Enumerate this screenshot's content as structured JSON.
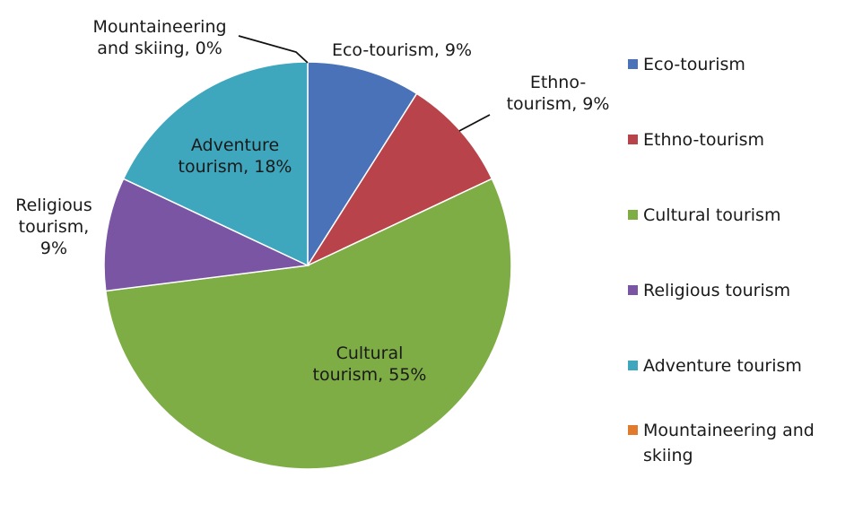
{
  "chart_data": {
    "type": "pie",
    "title": "",
    "legend_position": "right",
    "slices": [
      {
        "name": "Eco-tourism",
        "value": 9,
        "label": [
          "Eco-tourism, 9%"
        ],
        "color": "#4a72b8"
      },
      {
        "name": "Ethno-tourism",
        "value": 9,
        "label": [
          "Ethno-",
          "tourism, 9%"
        ],
        "color": "#b9434a"
      },
      {
        "name": "Cultural tourism",
        "value": 55,
        "label": [
          "Cultural",
          "tourism, 55%"
        ],
        "color": "#7ead45"
      },
      {
        "name": "Religious tourism",
        "value": 9,
        "label": [
          "Religious",
          "tourism,",
          "9%"
        ],
        "color": "#7a55a3"
      },
      {
        "name": "Adventure tourism",
        "value": 18,
        "label": [
          "Adventure",
          "tourism, 18%"
        ],
        "color": "#3ea7bd"
      },
      {
        "name": "Mountaineering and skiing",
        "value": 0,
        "label": [
          "Mountaineering",
          "and skiing, 0%"
        ],
        "color": "#e07a2c"
      }
    ],
    "legend": [
      {
        "text": [
          "Eco-tourism"
        ],
        "color": "#4a72b8"
      },
      {
        "text": [
          "Ethno-tourism"
        ],
        "color": "#b9434a"
      },
      {
        "text": [
          "Cultural tourism"
        ],
        "color": "#7ead45"
      },
      {
        "text": [
          "Religious tourism"
        ],
        "color": "#7a55a3"
      },
      {
        "text": [
          "Adventure tourism"
        ],
        "color": "#3ea7bd"
      },
      {
        "text": [
          "Mountaineering and",
          "skiing"
        ],
        "color": "#e07a2c"
      }
    ]
  }
}
